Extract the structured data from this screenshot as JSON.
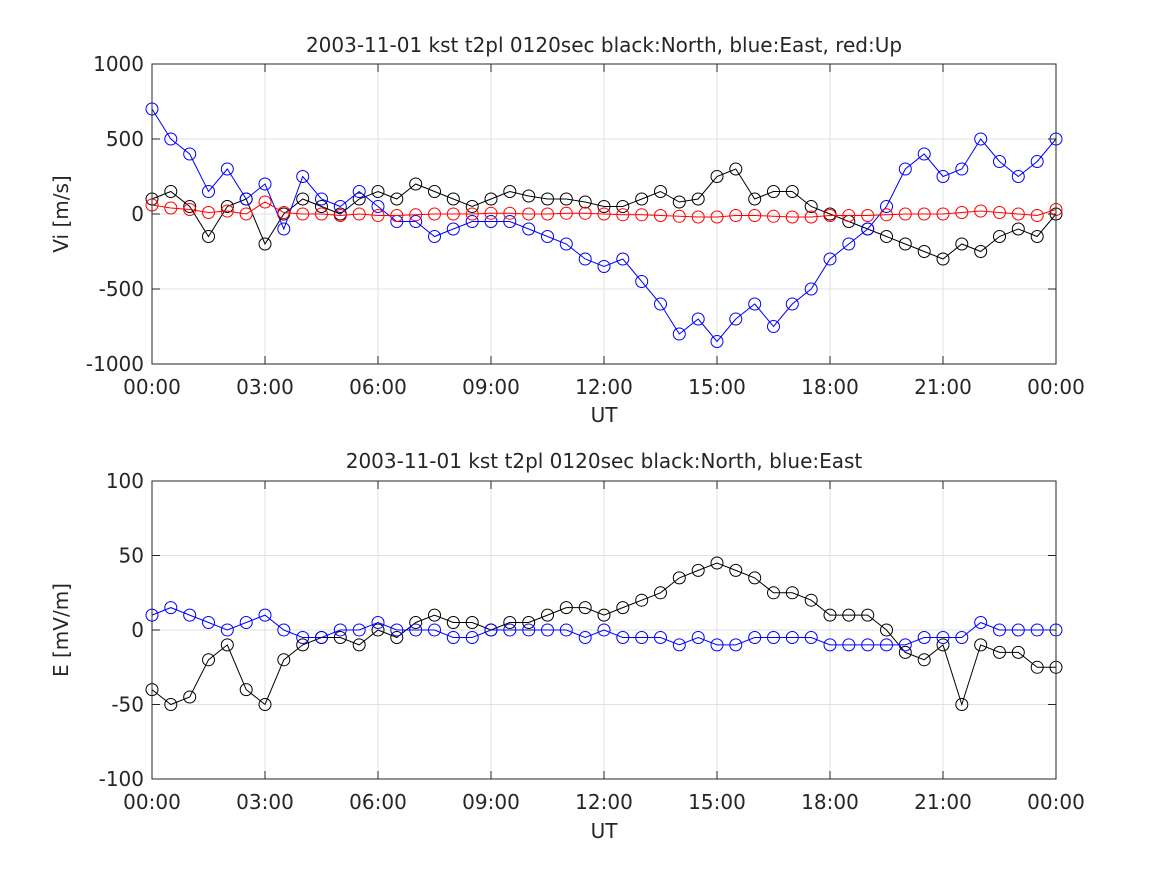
{
  "chart_data": [
    {
      "type": "scatter",
      "title": "2003-11-01 kst t2pl 0120sec black:North, blue:East, red:Up",
      "xlabel": "UT",
      "ylabel": "Vi [m/s]",
      "xlim": [
        0,
        24
      ],
      "ylim": [
        -1000,
        1000
      ],
      "xticks": [
        "00:00",
        "03:00",
        "06:00",
        "09:00",
        "12:00",
        "15:00",
        "18:00",
        "21:00",
        "00:00"
      ],
      "yticks": [
        "-1000",
        "-500",
        "0",
        "500",
        "1000"
      ],
      "ytick_values": [
        -1000,
        -500,
        0,
        500,
        1000
      ],
      "grid": true,
      "series": [
        {
          "name": "North",
          "color": "#000000",
          "marker": "circle",
          "x": [
            0.0,
            0.5,
            1.0,
            1.5,
            2.0,
            2.5,
            3.0,
            3.5,
            4.0,
            4.5,
            5.0,
            5.5,
            6.0,
            6.5,
            7.0,
            7.5,
            8.0,
            8.5,
            9.0,
            9.5,
            10.0,
            10.5,
            11.0,
            11.5,
            12.0,
            12.5,
            13.0,
            13.5,
            14.0,
            14.5,
            15.0,
            15.5,
            16.0,
            16.5,
            17.0,
            17.5,
            18.0,
            18.5,
            19.0,
            19.5,
            20.0,
            20.5,
            21.0,
            21.5,
            22.0,
            22.5,
            23.0,
            23.5,
            24.0
          ],
          "y": [
            100,
            150,
            50,
            -150,
            50,
            100,
            -200,
            0,
            100,
            50,
            0,
            100,
            150,
            100,
            200,
            150,
            100,
            50,
            100,
            150,
            120,
            100,
            100,
            80,
            50,
            50,
            100,
            150,
            80,
            100,
            250,
            300,
            100,
            150,
            150,
            50,
            0,
            -50,
            -100,
            -150,
            -200,
            -250,
            -300,
            -200,
            -250,
            -150,
            -100,
            -150,
            0
          ]
        },
        {
          "name": "East",
          "color": "#0000ff",
          "marker": "circle",
          "x": [
            0.0,
            0.5,
            1.0,
            1.5,
            2.0,
            2.5,
            3.0,
            3.5,
            4.0,
            4.5,
            5.0,
            5.5,
            6.0,
            6.5,
            7.0,
            7.5,
            8.0,
            8.5,
            9.0,
            9.5,
            10.0,
            10.5,
            11.0,
            11.5,
            12.0,
            12.5,
            13.0,
            13.5,
            14.0,
            14.5,
            15.0,
            15.5,
            16.0,
            16.5,
            17.0,
            17.5,
            18.0,
            18.5,
            19.0,
            19.5,
            20.0,
            20.5,
            21.0,
            21.5,
            22.0,
            22.5,
            23.0,
            23.5,
            24.0
          ],
          "y": [
            700,
            500,
            400,
            150,
            300,
            100,
            200,
            -100,
            250,
            100,
            50,
            150,
            50,
            -50,
            -50,
            -150,
            -100,
            -50,
            -50,
            -50,
            -100,
            -150,
            -200,
            -300,
            -350,
            -300,
            -450,
            -600,
            -800,
            -700,
            -850,
            -700,
            -600,
            -750,
            -600,
            -500,
            -300,
            -200,
            -100,
            50,
            300,
            400,
            250,
            300,
            500,
            350,
            250,
            350,
            500
          ]
        },
        {
          "name": "Up",
          "color": "#ff0000",
          "marker": "circle",
          "x": [
            0.0,
            0.5,
            1.0,
            1.5,
            2.0,
            2.5,
            3.0,
            3.5,
            4.0,
            4.5,
            5.0,
            5.5,
            6.0,
            6.5,
            7.0,
            7.5,
            8.0,
            8.5,
            9.0,
            9.5,
            10.0,
            10.5,
            11.0,
            11.5,
            12.0,
            12.5,
            13.0,
            13.5,
            14.0,
            14.5,
            15.0,
            15.5,
            16.0,
            16.5,
            17.0,
            17.5,
            18.0,
            18.5,
            19.0,
            19.5,
            20.0,
            20.5,
            21.0,
            21.5,
            22.0,
            22.5,
            23.0,
            23.5,
            24.0
          ],
          "y": [
            60,
            40,
            30,
            10,
            20,
            0,
            80,
            10,
            0,
            0,
            -10,
            0,
            -10,
            -10,
            -5,
            0,
            0,
            0,
            5,
            5,
            0,
            0,
            5,
            5,
            0,
            -5,
            -5,
            -10,
            -15,
            -20,
            -20,
            -10,
            -10,
            -15,
            -20,
            -20,
            -10,
            -10,
            -10,
            -5,
            0,
            0,
            0,
            10,
            20,
            10,
            0,
            -10,
            30
          ]
        }
      ]
    },
    {
      "type": "scatter",
      "title": "2003-11-01 kst t2pl 0120sec black:North, blue:East",
      "xlabel": "UT",
      "ylabel": "E [mV/m]",
      "xlim": [
        0,
        24
      ],
      "ylim": [
        -100,
        100
      ],
      "xticks": [
        "00:00",
        "03:00",
        "06:00",
        "09:00",
        "12:00",
        "15:00",
        "18:00",
        "21:00",
        "00:00"
      ],
      "yticks": [
        "-100",
        "-50",
        "0",
        "50",
        "100"
      ],
      "ytick_values": [
        -100,
        -50,
        0,
        50,
        100
      ],
      "grid": true,
      "series": [
        {
          "name": "North",
          "color": "#000000",
          "marker": "circle",
          "x": [
            0.0,
            0.5,
            1.0,
            1.5,
            2.0,
            2.5,
            3.0,
            3.5,
            4.0,
            4.5,
            5.0,
            5.5,
            6.0,
            6.5,
            7.0,
            7.5,
            8.0,
            8.5,
            9.0,
            9.5,
            10.0,
            10.5,
            11.0,
            11.5,
            12.0,
            12.5,
            13.0,
            13.5,
            14.0,
            14.5,
            15.0,
            15.5,
            16.0,
            16.5,
            17.0,
            17.5,
            18.0,
            18.5,
            19.0,
            19.5,
            20.0,
            20.5,
            21.0,
            21.5,
            22.0,
            22.5,
            23.0,
            23.5,
            24.0
          ],
          "y": [
            -40,
            -50,
            -45,
            -20,
            -10,
            -40,
            -50,
            -20,
            -10,
            -5,
            -5,
            -10,
            0,
            -5,
            5,
            10,
            5,
            5,
            0,
            5,
            5,
            10,
            15,
            15,
            10,
            15,
            20,
            25,
            35,
            40,
            45,
            40,
            35,
            25,
            25,
            20,
            10,
            10,
            10,
            0,
            -15,
            -20,
            -10,
            -50,
            -10,
            -15,
            -15,
            -25,
            -25
          ]
        },
        {
          "name": "East",
          "color": "#0000ff",
          "marker": "circle",
          "x": [
            0.0,
            0.5,
            1.0,
            1.5,
            2.0,
            2.5,
            3.0,
            3.5,
            4.0,
            4.5,
            5.0,
            5.5,
            6.0,
            6.5,
            7.0,
            7.5,
            8.0,
            8.5,
            9.0,
            9.5,
            10.0,
            10.5,
            11.0,
            11.5,
            12.0,
            12.5,
            13.0,
            13.5,
            14.0,
            14.5,
            15.0,
            15.5,
            16.0,
            16.5,
            17.0,
            17.5,
            18.0,
            18.5,
            19.0,
            19.5,
            20.0,
            20.5,
            21.0,
            21.5,
            22.0,
            22.5,
            23.0,
            23.5,
            24.0
          ],
          "y": [
            10,
            15,
            10,
            5,
            0,
            5,
            10,
            0,
            -5,
            -5,
            0,
            0,
            5,
            0,
            0,
            0,
            -5,
            -5,
            0,
            0,
            0,
            0,
            0,
            -5,
            0,
            -5,
            -5,
            -5,
            -10,
            -5,
            -10,
            -10,
            -5,
            -5,
            -5,
            -5,
            -10,
            -10,
            -10,
            -10,
            -10,
            -5,
            -5,
            -5,
            5,
            0,
            0,
            0,
            0
          ]
        }
      ]
    }
  ]
}
